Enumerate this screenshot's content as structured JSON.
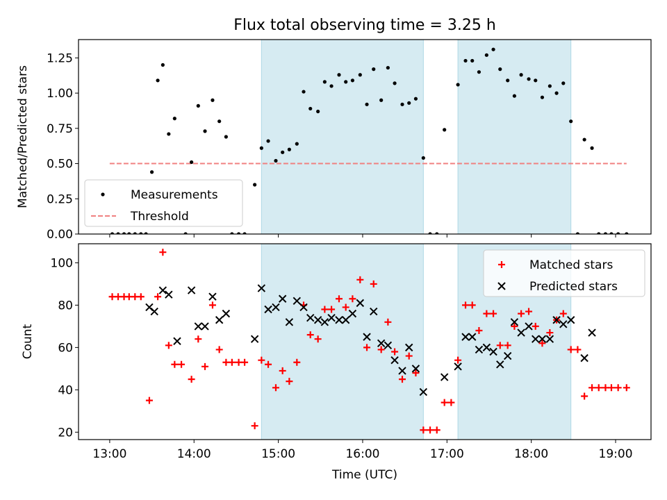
{
  "title": "Flux total observing time = 3.25 h",
  "colors": {
    "measurement": "#000000",
    "threshold": "#f08080",
    "matched": "#ff0000",
    "predicted": "#000000",
    "shade": "#add8e6"
  },
  "chart_data": [
    {
      "type": "scatter",
      "ylabel": "Matched/Predicted stars",
      "xlim": [
        12.63,
        19.42
      ],
      "ylim": [
        0,
        1.38
      ],
      "yticks": [
        0.0,
        0.25,
        0.5,
        0.75,
        1.0,
        1.25
      ],
      "ytick_labels": [
        "0.00",
        "0.25",
        "0.50",
        "0.75",
        "1.00",
        "1.25"
      ],
      "xticks": [
        13,
        14,
        15,
        16,
        17,
        18,
        19
      ],
      "shaded_intervals": [
        [
          14.8,
          16.72
        ],
        [
          17.13,
          18.47
        ]
      ],
      "legend": {
        "position": "lower left",
        "entries": [
          "Measurements",
          "Threshold"
        ]
      },
      "threshold": {
        "name": "Threshold",
        "y": 0.5,
        "x": [
          13.0,
          19.13
        ]
      },
      "series": [
        {
          "name": "Measurements",
          "points": [
            [
              13.03,
              0
            ],
            [
              13.1,
              0
            ],
            [
              13.17,
              0
            ],
            [
              13.23,
              0
            ],
            [
              13.3,
              0
            ],
            [
              13.37,
              0
            ],
            [
              13.43,
              0
            ],
            [
              13.5,
              0.44
            ],
            [
              13.57,
              1.09
            ],
            [
              13.63,
              1.2
            ],
            [
              13.7,
              0.71
            ],
            [
              13.77,
              0.82
            ],
            [
              13.9,
              0
            ],
            [
              13.97,
              0.51
            ],
            [
              14.05,
              0.91
            ],
            [
              14.13,
              0.73
            ],
            [
              14.22,
              0.95
            ],
            [
              14.3,
              0.8
            ],
            [
              14.38,
              0.69
            ],
            [
              14.45,
              0
            ],
            [
              14.53,
              0
            ],
            [
              14.6,
              0
            ],
            [
              14.72,
              0.35
            ],
            [
              14.8,
              0.61
            ],
            [
              14.88,
              0.66
            ],
            [
              14.97,
              0.52
            ],
            [
              15.05,
              0.58
            ],
            [
              15.13,
              0.6
            ],
            [
              15.22,
              0.64
            ],
            [
              15.3,
              1.01
            ],
            [
              15.38,
              0.89
            ],
            [
              15.47,
              0.87
            ],
            [
              15.55,
              1.08
            ],
            [
              15.63,
              1.05
            ],
            [
              15.72,
              1.13
            ],
            [
              15.8,
              1.08
            ],
            [
              15.88,
              1.09
            ],
            [
              15.97,
              1.13
            ],
            [
              16.05,
              0.92
            ],
            [
              16.13,
              1.17
            ],
            [
              16.22,
              0.95
            ],
            [
              16.3,
              1.18
            ],
            [
              16.38,
              1.07
            ],
            [
              16.47,
              0.92
            ],
            [
              16.55,
              0.93
            ],
            [
              16.63,
              0.96
            ],
            [
              16.72,
              0.54
            ],
            [
              16.8,
              0
            ],
            [
              16.88,
              0
            ],
            [
              16.97,
              0.74
            ],
            [
              17.13,
              1.06
            ],
            [
              17.22,
              1.23
            ],
            [
              17.3,
              1.23
            ],
            [
              17.38,
              1.15
            ],
            [
              17.47,
              1.27
            ],
            [
              17.55,
              1.31
            ],
            [
              17.63,
              1.17
            ],
            [
              17.72,
              1.09
            ],
            [
              17.8,
              0.98
            ],
            [
              17.88,
              1.13
            ],
            [
              17.97,
              1.1
            ],
            [
              18.05,
              1.09
            ],
            [
              18.13,
              0.97
            ],
            [
              18.22,
              1.05
            ],
            [
              18.3,
              1.0
            ],
            [
              18.38,
              1.07
            ],
            [
              18.47,
              0.8
            ],
            [
              18.55,
              0
            ],
            [
              18.63,
              0.67
            ],
            [
              18.72,
              0.61
            ],
            [
              18.8,
              0
            ],
            [
              18.88,
              0
            ],
            [
              18.95,
              0
            ],
            [
              19.03,
              0
            ],
            [
              19.13,
              0
            ]
          ]
        }
      ]
    },
    {
      "type": "scatter",
      "ylabel": "Count",
      "xlabel": "Time (UTC)",
      "xlim": [
        12.63,
        19.42
      ],
      "ylim": [
        16.5,
        109
      ],
      "yticks": [
        20,
        40,
        60,
        80,
        100
      ],
      "ytick_labels": [
        "20",
        "40",
        "60",
        "80",
        "100"
      ],
      "xticks": [
        13,
        14,
        15,
        16,
        17,
        18,
        19
      ],
      "xtick_labels": [
        "13:00",
        "14:00",
        "15:00",
        "16:00",
        "17:00",
        "18:00",
        "19:00"
      ],
      "shaded_intervals": [
        [
          14.8,
          16.72
        ],
        [
          17.13,
          18.47
        ]
      ],
      "legend": {
        "position": "upper right",
        "entries": [
          "Matched stars",
          "Predicted stars"
        ]
      },
      "series": [
        {
          "name": "Matched stars",
          "marker": "plus",
          "points": [
            [
              13.03,
              84
            ],
            [
              13.1,
              84
            ],
            [
              13.17,
              84
            ],
            [
              13.23,
              84
            ],
            [
              13.3,
              84
            ],
            [
              13.37,
              84
            ],
            [
              13.47,
              35
            ],
            [
              13.57,
              84
            ],
            [
              13.63,
              105
            ],
            [
              13.7,
              61
            ],
            [
              13.77,
              52
            ],
            [
              13.85,
              52
            ],
            [
              13.97,
              45
            ],
            [
              14.05,
              64
            ],
            [
              14.13,
              51
            ],
            [
              14.22,
              80
            ],
            [
              14.3,
              59
            ],
            [
              14.38,
              53
            ],
            [
              14.45,
              53
            ],
            [
              14.53,
              53
            ],
            [
              14.6,
              53
            ],
            [
              14.72,
              23
            ],
            [
              14.8,
              54
            ],
            [
              14.88,
              52
            ],
            [
              14.97,
              41
            ],
            [
              15.05,
              49
            ],
            [
              15.13,
              44
            ],
            [
              15.22,
              53
            ],
            [
              15.3,
              80
            ],
            [
              15.38,
              66
            ],
            [
              15.47,
              64
            ],
            [
              15.55,
              78
            ],
            [
              15.63,
              78
            ],
            [
              15.72,
              83
            ],
            [
              15.8,
              79
            ],
            [
              15.88,
              83
            ],
            [
              15.97,
              92
            ],
            [
              16.05,
              60
            ],
            [
              16.13,
              90
            ],
            [
              16.22,
              59
            ],
            [
              16.3,
              72
            ],
            [
              16.38,
              58
            ],
            [
              16.47,
              45
            ],
            [
              16.55,
              56
            ],
            [
              16.63,
              48
            ],
            [
              16.72,
              21
            ],
            [
              16.8,
              21
            ],
            [
              16.88,
              21
            ],
            [
              16.97,
              34
            ],
            [
              17.05,
              34
            ],
            [
              17.13,
              54
            ],
            [
              17.22,
              80
            ],
            [
              17.3,
              80
            ],
            [
              17.38,
              68
            ],
            [
              17.47,
              76
            ],
            [
              17.55,
              76
            ],
            [
              17.63,
              61
            ],
            [
              17.72,
              61
            ],
            [
              17.8,
              70
            ],
            [
              17.88,
              76
            ],
            [
              17.97,
              77
            ],
            [
              18.05,
              70
            ],
            [
              18.13,
              62
            ],
            [
              18.22,
              67
            ],
            [
              18.3,
              73
            ],
            [
              18.38,
              76
            ],
            [
              18.47,
              59
            ],
            [
              18.55,
              59
            ],
            [
              18.63,
              37
            ],
            [
              18.72,
              41
            ],
            [
              18.8,
              41
            ],
            [
              18.88,
              41
            ],
            [
              18.95,
              41
            ],
            [
              19.03,
              41
            ],
            [
              19.13,
              41
            ]
          ]
        },
        {
          "name": "Predicted stars",
          "marker": "x",
          "points": [
            [
              13.47,
              79
            ],
            [
              13.53,
              77
            ],
            [
              13.63,
              87
            ],
            [
              13.7,
              85
            ],
            [
              13.8,
              63
            ],
            [
              13.97,
              87
            ],
            [
              14.05,
              70
            ],
            [
              14.13,
              70
            ],
            [
              14.22,
              84
            ],
            [
              14.3,
              73
            ],
            [
              14.38,
              76
            ],
            [
              14.72,
              64
            ],
            [
              14.8,
              88
            ],
            [
              14.88,
              78
            ],
            [
              14.97,
              79
            ],
            [
              15.05,
              83
            ],
            [
              15.13,
              72
            ],
            [
              15.22,
              82
            ],
            [
              15.3,
              79
            ],
            [
              15.38,
              74
            ],
            [
              15.47,
              73
            ],
            [
              15.55,
              72
            ],
            [
              15.63,
              74
            ],
            [
              15.72,
              73
            ],
            [
              15.8,
              73
            ],
            [
              15.88,
              76
            ],
            [
              15.97,
              81
            ],
            [
              16.05,
              65
            ],
            [
              16.13,
              77
            ],
            [
              16.22,
              62
            ],
            [
              16.3,
              61
            ],
            [
              16.38,
              54
            ],
            [
              16.47,
              49
            ],
            [
              16.55,
              60
            ],
            [
              16.63,
              50
            ],
            [
              16.72,
              39
            ],
            [
              16.97,
              46
            ],
            [
              17.13,
              51
            ],
            [
              17.22,
              65
            ],
            [
              17.3,
              65
            ],
            [
              17.38,
              59
            ],
            [
              17.47,
              60
            ],
            [
              17.55,
              58
            ],
            [
              17.63,
              52
            ],
            [
              17.72,
              56
            ],
            [
              17.8,
              72
            ],
            [
              17.88,
              67
            ],
            [
              17.97,
              70
            ],
            [
              18.05,
              64
            ],
            [
              18.13,
              64
            ],
            [
              18.22,
              64
            ],
            [
              18.3,
              73
            ],
            [
              18.38,
              71
            ],
            [
              18.47,
              73
            ],
            [
              18.63,
              55
            ],
            [
              18.72,
              67
            ]
          ]
        }
      ]
    }
  ]
}
